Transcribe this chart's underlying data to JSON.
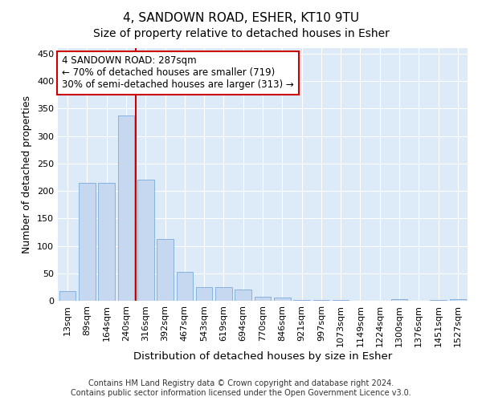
{
  "title": "4, SANDOWN ROAD, ESHER, KT10 9TU",
  "subtitle": "Size of property relative to detached houses in Esher",
  "xlabel": "Distribution of detached houses by size in Esher",
  "ylabel": "Number of detached properties",
  "categories": [
    "13sqm",
    "89sqm",
    "164sqm",
    "240sqm",
    "316sqm",
    "392sqm",
    "467sqm",
    "543sqm",
    "619sqm",
    "694sqm",
    "770sqm",
    "846sqm",
    "921sqm",
    "997sqm",
    "1073sqm",
    "1149sqm",
    "1224sqm",
    "1300sqm",
    "1376sqm",
    "1451sqm",
    "1527sqm"
  ],
  "values": [
    17,
    215,
    215,
    338,
    220,
    113,
    53,
    25,
    25,
    20,
    8,
    6,
    2,
    1,
    1,
    0,
    0,
    3,
    0,
    2,
    3
  ],
  "bar_color": "#c5d8f0",
  "bar_edge_color": "#7aabdb",
  "vline_pos": 3.5,
  "vline_color": "#cc0000",
  "annotation_text": "4 SANDOWN ROAD: 287sqm\n← 70% of detached houses are smaller (719)\n30% of semi-detached houses are larger (313) →",
  "annotation_box_facecolor": "#ffffff",
  "annotation_box_edgecolor": "#cc0000",
  "ylim": [
    0,
    460
  ],
  "yticks": [
    0,
    50,
    100,
    150,
    200,
    250,
    300,
    350,
    400,
    450
  ],
  "background_color": "#ddeaf8",
  "grid_color": "#ffffff",
  "footer": "Contains HM Land Registry data © Crown copyright and database right 2024.\nContains public sector information licensed under the Open Government Licence v3.0.",
  "title_fontsize": 11,
  "subtitle_fontsize": 10,
  "xlabel_fontsize": 9.5,
  "ylabel_fontsize": 9,
  "tick_fontsize": 8,
  "annotation_fontsize": 8.5,
  "footer_fontsize": 7
}
